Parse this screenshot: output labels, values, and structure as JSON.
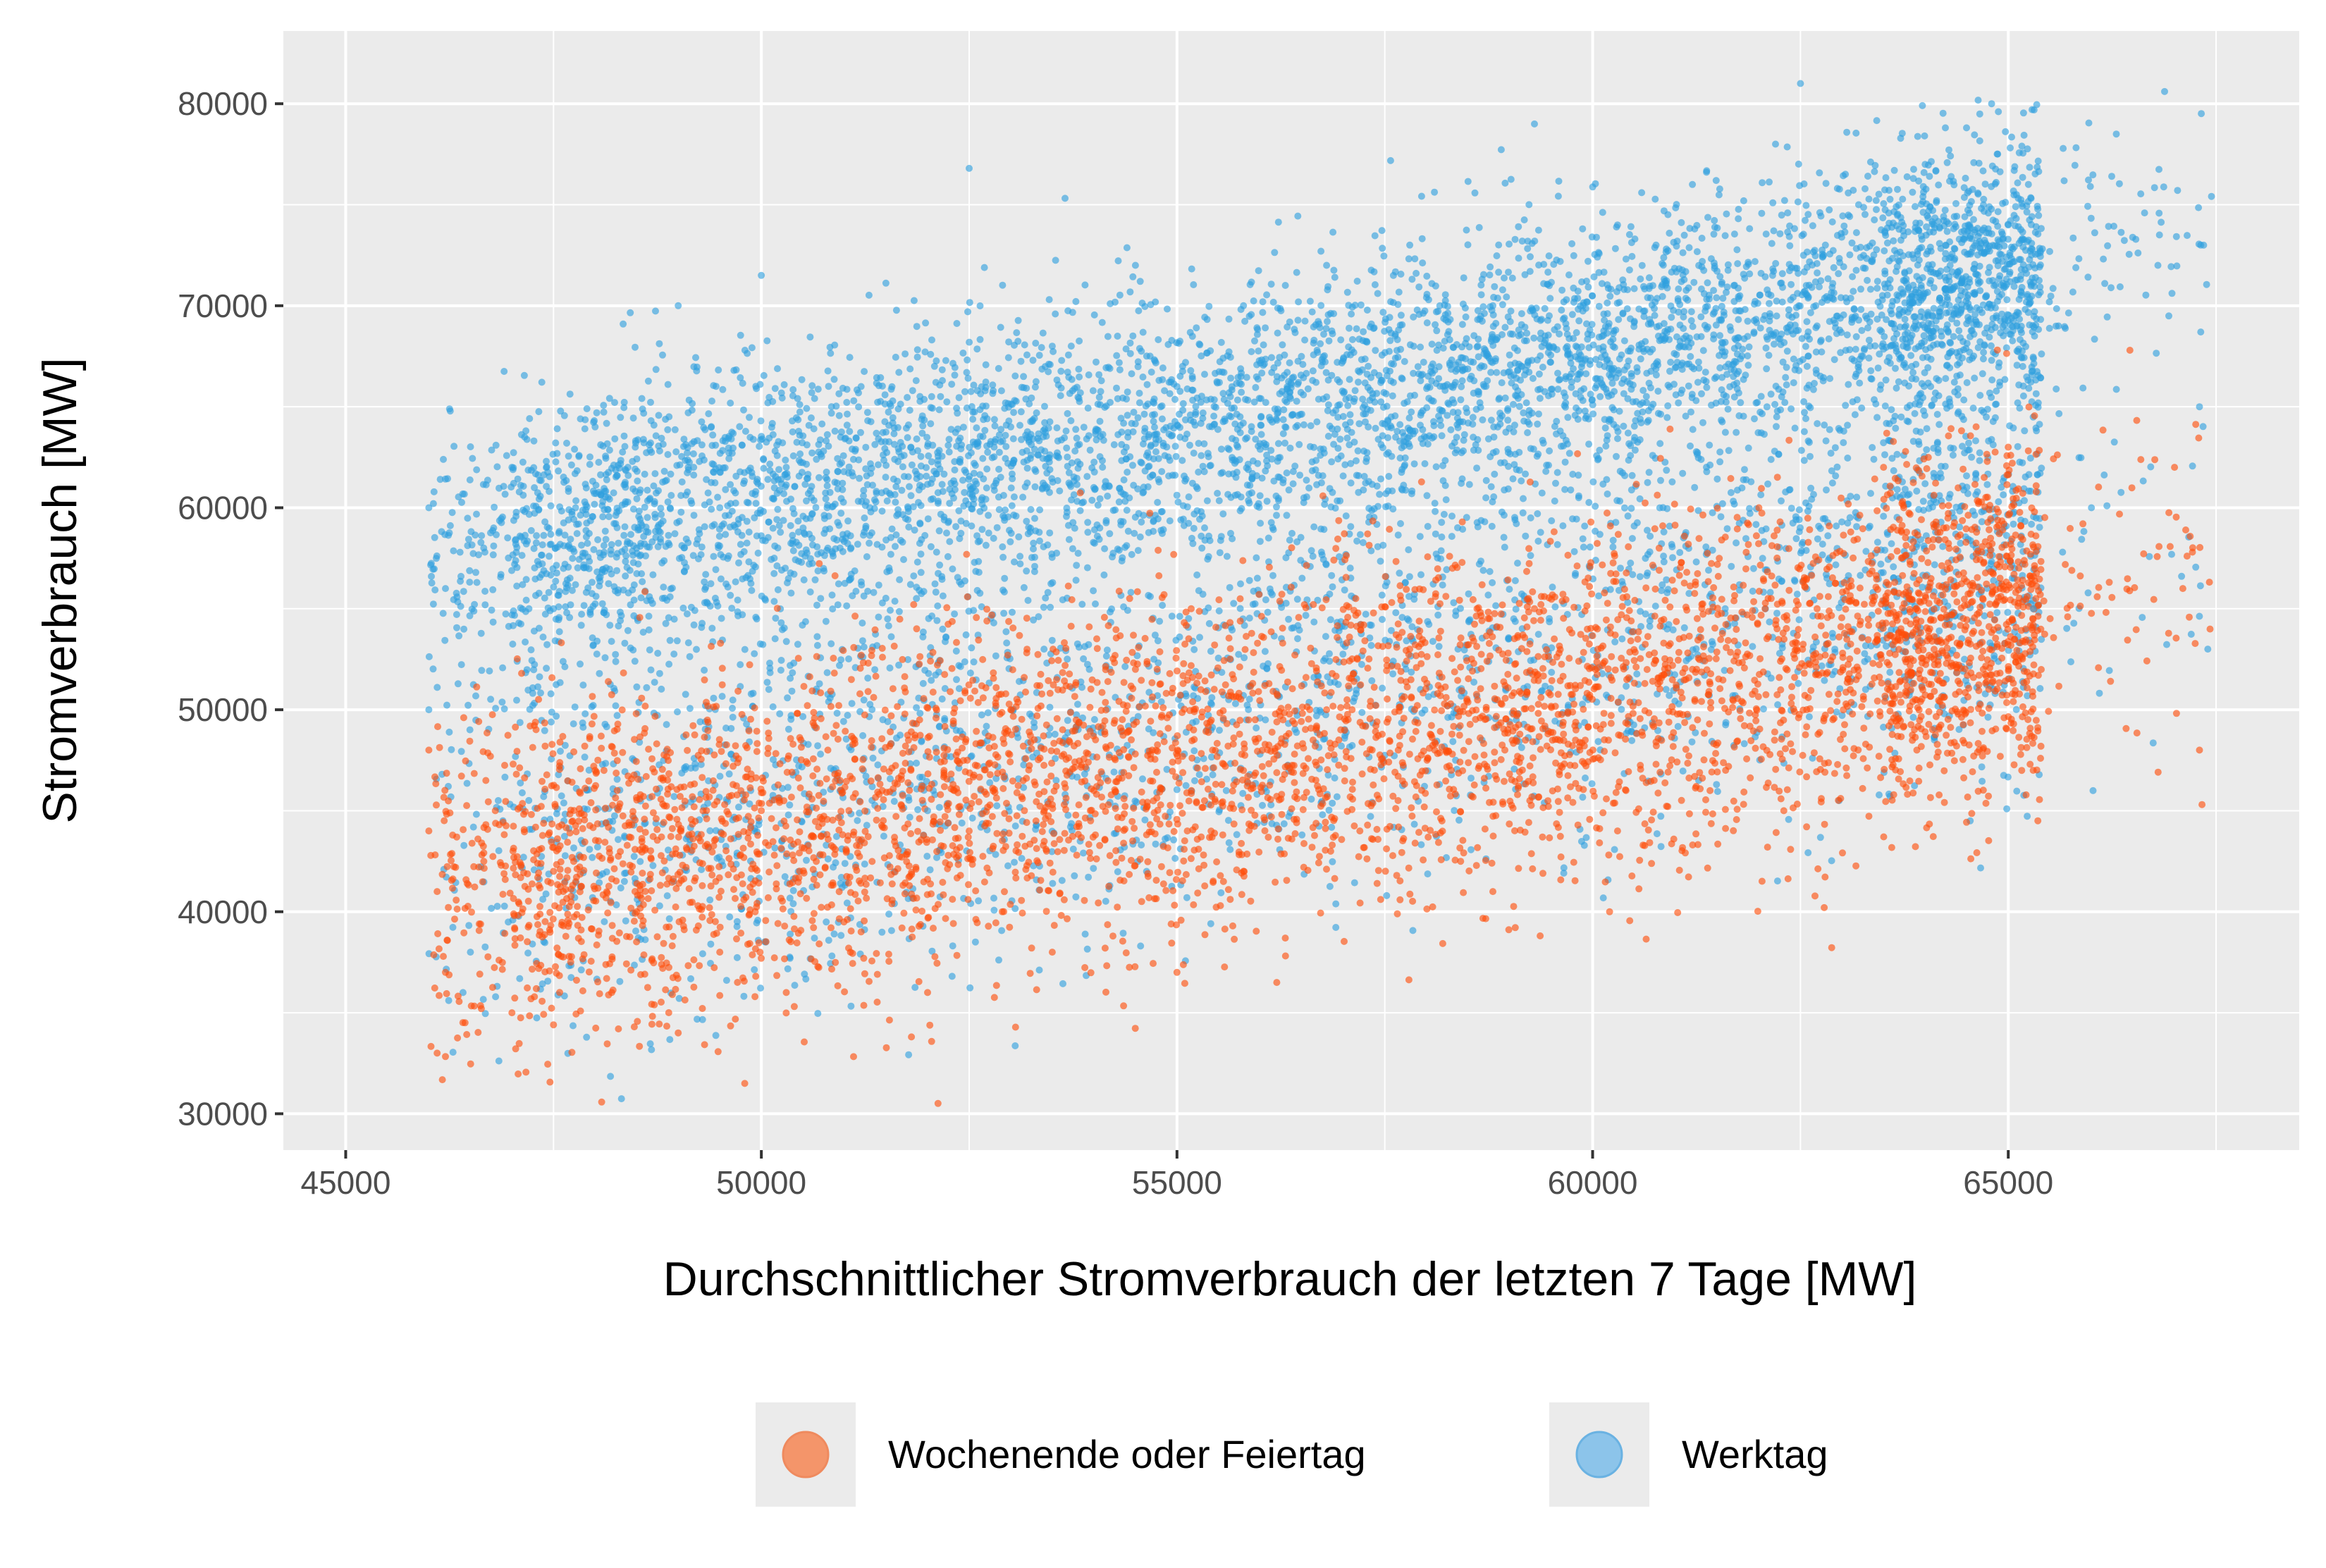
{
  "chart_data": {
    "type": "scatter",
    "title": "",
    "xlabel": "Durchschnittlicher Stromverbrauch der letzten 7 Tage [MW]",
    "ylabel": "Stromverbrauch [MW]",
    "xlim": [
      45000,
      67500
    ],
    "ylim": [
      30000,
      80000
    ],
    "x_ticks": [
      45000,
      50000,
      55000,
      60000,
      65000
    ],
    "x_tick_labels": [
      "45000",
      "50000",
      "55000",
      "60000",
      "65000"
    ],
    "y_ticks": [
      30000,
      40000,
      50000,
      60000,
      70000,
      80000
    ],
    "y_tick_labels": [
      "30000",
      "40000",
      "50000",
      "60000",
      "70000",
      "80000"
    ],
    "grid": true,
    "legend_position": "bottom",
    "series": [
      {
        "name": "Wochenende oder Feiertag",
        "color": "#ff4e0a",
        "points": [
          [
            46000,
            48000
          ],
          [
            46000,
            44000
          ],
          [
            46100,
            33000
          ],
          [
            46100,
            41000
          ],
          [
            46200,
            37000
          ],
          [
            46800,
            45000
          ],
          [
            47000,
            35000
          ],
          [
            47500,
            42000
          ],
          [
            48000,
            47000
          ],
          [
            48200,
            36000
          ],
          [
            48500,
            40000
          ],
          [
            49000,
            34000
          ],
          [
            49500,
            38000
          ],
          [
            49800,
            31500
          ],
          [
            50000,
            45000
          ],
          [
            50300,
            36000
          ],
          [
            50800,
            48000
          ],
          [
            51200,
            39000
          ],
          [
            51800,
            47000
          ],
          [
            52000,
            36000
          ],
          [
            52500,
            44000
          ],
          [
            53000,
            50000
          ],
          [
            53500,
            38000
          ],
          [
            54000,
            46000
          ],
          [
            54500,
            52000
          ],
          [
            55000,
            37000
          ],
          [
            55200,
            49000
          ],
          [
            55800,
            42000
          ],
          [
            56200,
            36500
          ],
          [
            56800,
            50000
          ],
          [
            57200,
            44000
          ],
          [
            57800,
            53000
          ],
          [
            58300,
            47000
          ],
          [
            58800,
            41000
          ],
          [
            59300,
            55000
          ],
          [
            59800,
            49000
          ],
          [
            60300,
            44000
          ],
          [
            60800,
            58000
          ],
          [
            61200,
            52000
          ],
          [
            61600,
            47000
          ],
          [
            62000,
            60000
          ],
          [
            62300,
            45000
          ],
          [
            62700,
            55000
          ],
          [
            63100,
            51000
          ],
          [
            63500,
            62000
          ],
          [
            63900,
            48000
          ],
          [
            64300,
            57000
          ],
          [
            64700,
            52000
          ],
          [
            65000,
            63000
          ],
          [
            65300,
            47000
          ],
          [
            67000,
            62000
          ],
          [
            67100,
            56000
          ],
          [
            67300,
            48000
          ]
        ]
      },
      {
        "name": "Werktag",
        "color": "#2e9fdf",
        "points": [
          [
            46000,
            60000
          ],
          [
            46000,
            50000
          ],
          [
            46200,
            56000
          ],
          [
            46500,
            38000
          ],
          [
            47000,
            62000
          ],
          [
            47500,
            55000
          ],
          [
            48000,
            64000
          ],
          [
            48500,
            58000
          ],
          [
            49000,
            70000
          ],
          [
            49500,
            60000
          ],
          [
            50000,
            71500
          ],
          [
            50300,
            62000
          ],
          [
            50800,
            58000
          ],
          [
            51200,
            66000
          ],
          [
            51800,
            63000
          ],
          [
            52000,
            45000
          ],
          [
            52500,
            76800
          ],
          [
            53000,
            64000
          ],
          [
            53500,
            68000
          ],
          [
            54000,
            61000
          ],
          [
            54500,
            72000
          ],
          [
            55000,
            66000
          ],
          [
            55300,
            58000
          ],
          [
            55800,
            70000
          ],
          [
            56300,
            64000
          ],
          [
            56800,
            72000
          ],
          [
            57300,
            67000
          ],
          [
            57800,
            73000
          ],
          [
            58300,
            66000
          ],
          [
            58800,
            70000
          ],
          [
            59300,
            79000
          ],
          [
            59800,
            68000
          ],
          [
            60300,
            74000
          ],
          [
            60800,
            69000
          ],
          [
            61200,
            76000
          ],
          [
            61700,
            71000
          ],
          [
            62200,
            78000
          ],
          [
            62500,
            81000
          ],
          [
            62800,
            73000
          ],
          [
            63200,
            75000
          ],
          [
            63600,
            70000
          ],
          [
            64000,
            77000
          ],
          [
            64300,
            72000
          ],
          [
            64800,
            80000
          ],
          [
            65000,
            74000
          ],
          [
            65300,
            55000
          ],
          [
            66000,
            60000
          ],
          [
            66300,
            78500
          ],
          [
            66800,
            72000
          ],
          [
            67300,
            65000
          ],
          [
            67400,
            53000
          ]
        ]
      }
    ]
  }
}
